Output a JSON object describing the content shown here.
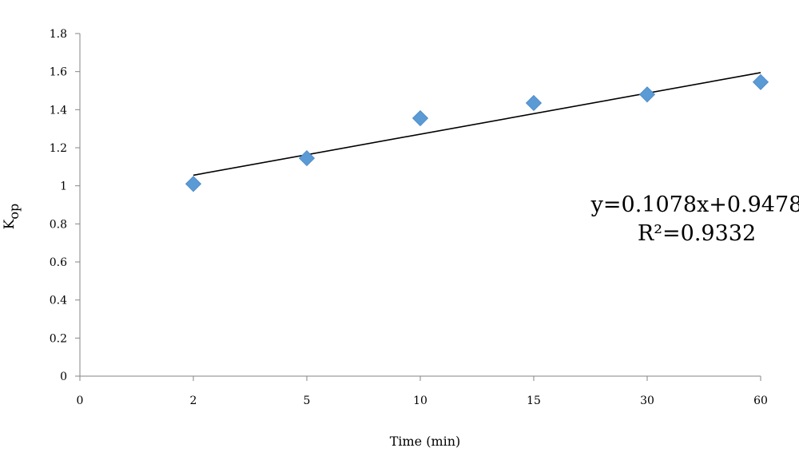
{
  "chart_data": {
    "type": "scatter",
    "categories": [
      "0",
      "2",
      "5",
      "10",
      "15",
      "30",
      "60"
    ],
    "series": [
      {
        "values": [
          1.01,
          1.145,
          1.355,
          1.435,
          1.48,
          1.545
        ],
        "categories": [
          "2",
          "5",
          "10",
          "15",
          "30",
          "60"
        ],
        "color": "#5B9BD5",
        "marker": "diamond"
      }
    ],
    "trendline": {
      "type": "linear",
      "equation": "y=0.1078x+0.9478",
      "r2_label": "R²=0.9332",
      "slope": 0.1078,
      "intercept": 0.9478,
      "color": "#000000"
    },
    "xlabel": "Time (min)",
    "ylabel": "K",
    "ylabel_sub": "op",
    "ylim": [
      0,
      1.8
    ],
    "yticks": [
      "0",
      "0.2",
      "0.4",
      "0.6",
      "0.8",
      "1",
      "1.2",
      "1.4",
      "1.6",
      "1.8"
    ],
    "grid": false,
    "legend": "none"
  }
}
